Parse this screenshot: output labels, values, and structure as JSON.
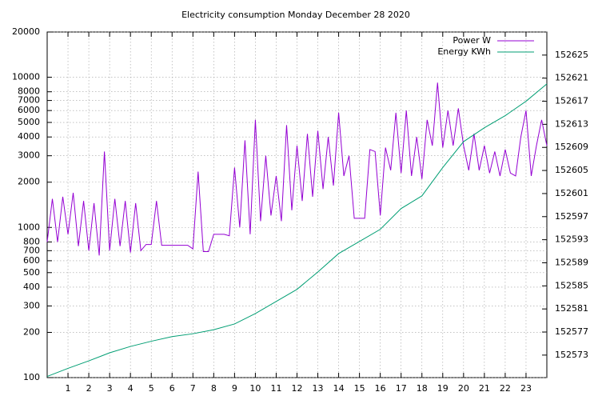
{
  "chart_data": {
    "type": "line",
    "title": "Electricity consumption Monday December 28 2020",
    "xlim": [
      0,
      24
    ],
    "xticks": [
      1,
      2,
      3,
      4,
      5,
      6,
      7,
      8,
      9,
      10,
      11,
      12,
      13,
      14,
      15,
      16,
      17,
      18,
      19,
      20,
      21,
      22,
      23
    ],
    "ylim": [
      100,
      20000
    ],
    "ylog": true,
    "yticks": [
      100,
      200,
      300,
      400,
      500,
      600,
      700,
      800,
      1000,
      2000,
      3000,
      4000,
      5000,
      6000,
      7000,
      8000,
      10000,
      20000
    ],
    "y2lim": [
      152569.1,
      152629
    ],
    "y2ticks": [
      152573,
      152577,
      152581,
      152585,
      152589,
      152593,
      152597,
      152601,
      152605,
      152609,
      152613,
      152617,
      152621,
      152625
    ],
    "grid": true,
    "legend": "top-right",
    "series": [
      {
        "name": "Power W",
        "color": "#9400d3",
        "axis": "y",
        "x": [
          0,
          0.25,
          0.5,
          0.75,
          1,
          1.25,
          1.5,
          1.75,
          2,
          2.25,
          2.5,
          2.75,
          3,
          3.25,
          3.5,
          3.75,
          4,
          4.25,
          4.5,
          4.75,
          5,
          5.25,
          5.5,
          5.75,
          6,
          6.25,
          6.5,
          6.75,
          7,
          7.25,
          7.5,
          7.75,
          8,
          8.25,
          8.5,
          8.75,
          9,
          9.25,
          9.5,
          9.75,
          10,
          10.25,
          10.5,
          10.75,
          11,
          11.25,
          11.5,
          11.75,
          12,
          12.25,
          12.5,
          12.75,
          13,
          13.25,
          13.5,
          13.75,
          14,
          14.25,
          14.5,
          14.75,
          15,
          15.25,
          15.5,
          15.75,
          16,
          16.25,
          16.5,
          16.75,
          17,
          17.25,
          17.5,
          17.75,
          18,
          18.25,
          18.5,
          18.75,
          19,
          19.25,
          19.5,
          19.75,
          20,
          20.25,
          20.5,
          20.75,
          21,
          21.25,
          21.5,
          21.75,
          22,
          22.25,
          22.5,
          22.75,
          23,
          23.25,
          23.5,
          23.75,
          24
        ],
        "values": [
          800,
          1550,
          800,
          1600,
          900,
          1700,
          750,
          1500,
          700,
          1450,
          650,
          3200,
          700,
          1550,
          750,
          1500,
          680,
          1450,
          700,
          770,
          770,
          1500,
          760,
          760,
          760,
          760,
          760,
          760,
          720,
          2350,
          690,
          690,
          900,
          900,
          900,
          880,
          2500,
          1000,
          3800,
          900,
          5200,
          1100,
          3000,
          1200,
          2200,
          1100,
          4800,
          1300,
          3500,
          1500,
          4200,
          1600,
          4400,
          1800,
          4000,
          1900,
          5800,
          2200,
          3000,
          1150,
          1150,
          1150,
          3300,
          3200,
          1200,
          3400,
          2400,
          5800,
          2300,
          6000,
          2200,
          4000,
          2100,
          5200,
          3500,
          9200,
          3400,
          6000,
          3500,
          6200,
          3500,
          2400,
          4200,
          2400,
          3500,
          2300,
          3200,
          2200,
          3300,
          2300,
          2200,
          4000,
          6000,
          2200,
          3500,
          5200,
          3500
        ]
      },
      {
        "name": "Energy KWh",
        "color": "#009e73",
        "axis": "y2",
        "x": [
          0,
          1,
          2,
          3,
          4,
          5,
          6,
          7,
          8,
          9,
          10,
          11,
          12,
          13,
          14,
          15,
          16,
          17,
          18,
          19,
          20,
          21,
          22,
          23,
          24
        ],
        "values": [
          152569.3,
          152570.7,
          152572.0,
          152573.4,
          152574.5,
          152575.4,
          152576.2,
          152576.7,
          152577.4,
          152578.4,
          152580.2,
          152582.3,
          152584.4,
          152587.4,
          152590.6,
          152592.7,
          152594.8,
          152598.4,
          152600.6,
          152605.5,
          152610.0,
          152612.4,
          152614.5,
          152617.0,
          152620.0
        ]
      }
    ]
  }
}
